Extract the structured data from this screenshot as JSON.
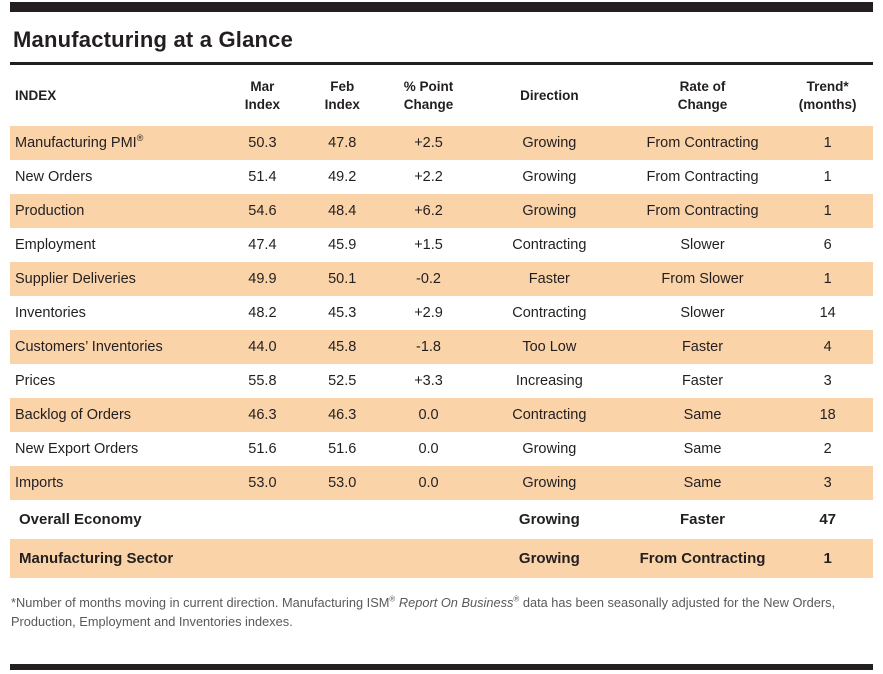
{
  "title": "Manufacturing at a Glance",
  "colors": {
    "row_shade": "#FAD3A8",
    "bar_black": "#231F20",
    "text": "#231F20",
    "footnote_text": "#58595B"
  },
  "table": {
    "headers": {
      "index": "INDEX",
      "mar": [
        "Mar",
        "Index"
      ],
      "feb": [
        "Feb",
        "Index"
      ],
      "change": [
        "% Point",
        "Change"
      ],
      "direction": "Direction",
      "rate": [
        "Rate of",
        "Change"
      ],
      "trend": [
        "Trend*",
        "(months)"
      ]
    },
    "rows": [
      {
        "index": "Manufacturing PMI",
        "index_sup": "®",
        "mar": "50.3",
        "feb": "47.8",
        "change": "+2.5",
        "direction": "Growing",
        "rate": "From Contracting",
        "trend": "1"
      },
      {
        "index": "New Orders",
        "mar": "51.4",
        "feb": "49.2",
        "change": "+2.2",
        "direction": "Growing",
        "rate": "From Contracting",
        "trend": "1"
      },
      {
        "index": "Production",
        "mar": "54.6",
        "feb": "48.4",
        "change": "+6.2",
        "direction": "Growing",
        "rate": "From Contracting",
        "trend": "1"
      },
      {
        "index": "Employment",
        "mar": "47.4",
        "feb": "45.9",
        "change": "+1.5",
        "direction": "Contracting",
        "rate": "Slower",
        "trend": "6"
      },
      {
        "index": "Supplier Deliveries",
        "mar": "49.9",
        "feb": "50.1",
        "change": "-0.2",
        "direction": "Faster",
        "rate": "From Slower",
        "trend": "1"
      },
      {
        "index": "Inventories",
        "mar": "48.2",
        "feb": "45.3",
        "change": "+2.9",
        "direction": "Contracting",
        "rate": "Slower",
        "trend": "14"
      },
      {
        "index": "Customers’ Inventories",
        "mar": "44.0",
        "feb": "45.8",
        "change": "-1.8",
        "direction": "Too Low",
        "rate": "Faster",
        "trend": "4"
      },
      {
        "index": "Prices",
        "mar": "55.8",
        "feb": "52.5",
        "change": "+3.3",
        "direction": "Increasing",
        "rate": "Faster",
        "trend": "3"
      },
      {
        "index": "Backlog of Orders",
        "mar": "46.3",
        "feb": "46.3",
        "change": "0.0",
        "direction": "Contracting",
        "rate": "Same",
        "trend": "18"
      },
      {
        "index": "New Export Orders",
        "mar": "51.6",
        "feb": "51.6",
        "change": "0.0",
        "direction": "Growing",
        "rate": "Same",
        "trend": "2"
      },
      {
        "index": "Imports",
        "mar": "53.0",
        "feb": "53.0",
        "change": "0.0",
        "direction": "Growing",
        "rate": "Same",
        "trend": "3"
      },
      {
        "index": "Overall Economy",
        "mar": "",
        "feb": "",
        "change": "",
        "direction": "Growing",
        "rate": "Faster",
        "trend": "47"
      },
      {
        "index": "Manufacturing Sector",
        "mar": "",
        "feb": "",
        "change": "",
        "direction": "Growing",
        "rate": "From Contracting",
        "trend": "1"
      }
    ]
  },
  "footnote": {
    "part1": "*Number of months moving in current direction. Manufacturing ISM",
    "sup1": "®",
    "italic": " Report On Business",
    "sup2": "®",
    "part2": " data has been seasonally adjusted for the New Orders, Production, Employment and Inventories indexes."
  }
}
